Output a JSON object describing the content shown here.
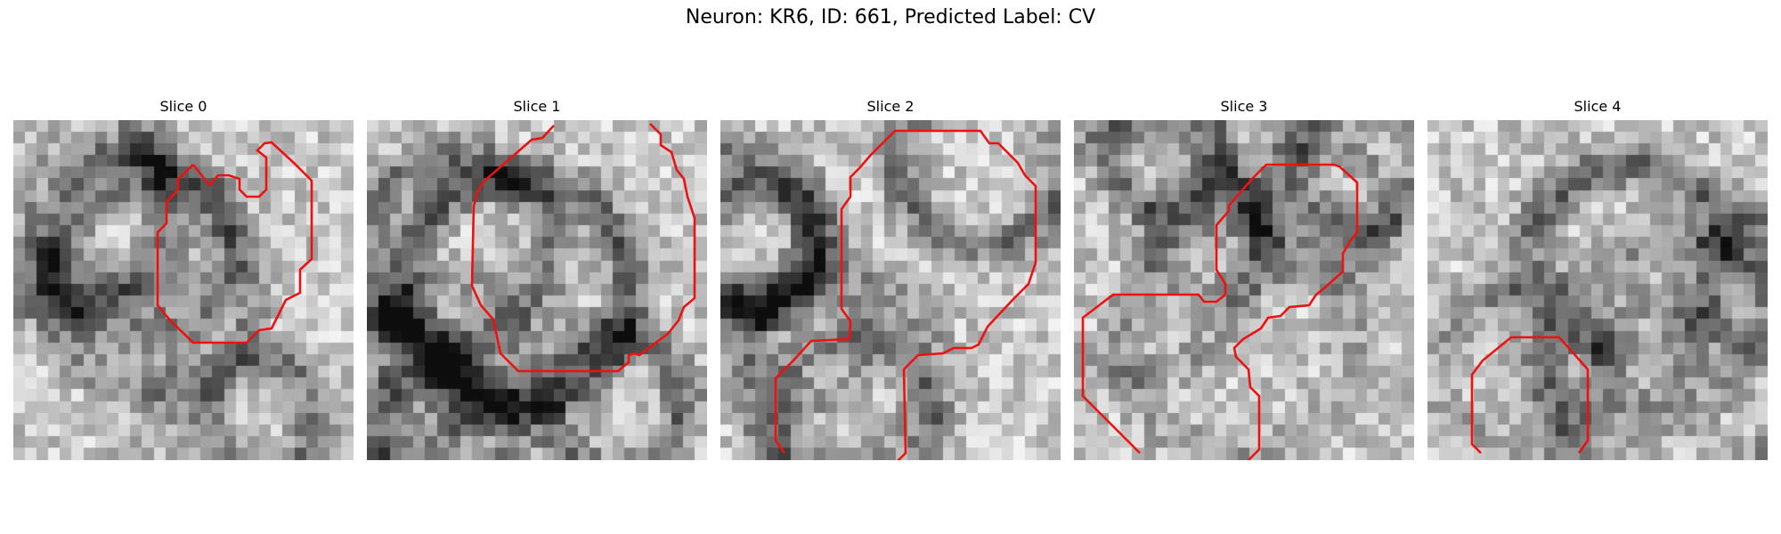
{
  "figure": {
    "title": "Neuron: KR6, ID: 661, Predicted Label: CV"
  },
  "colors": {
    "contour": "#ee1111",
    "background": "#ffffff"
  },
  "panels": [
    {
      "title": "Slice 0",
      "seed": 11,
      "darkness": 0.45
    },
    {
      "title": "Slice 1",
      "seed": 23,
      "darkness": 0.55
    },
    {
      "title": "Slice 2",
      "seed": 37,
      "darkness": 0.5
    },
    {
      "title": "Slice 3",
      "seed": 53,
      "darkness": 0.5
    },
    {
      "title": "Slice 4",
      "seed": 71,
      "darkness": 0.35
    }
  ]
}
